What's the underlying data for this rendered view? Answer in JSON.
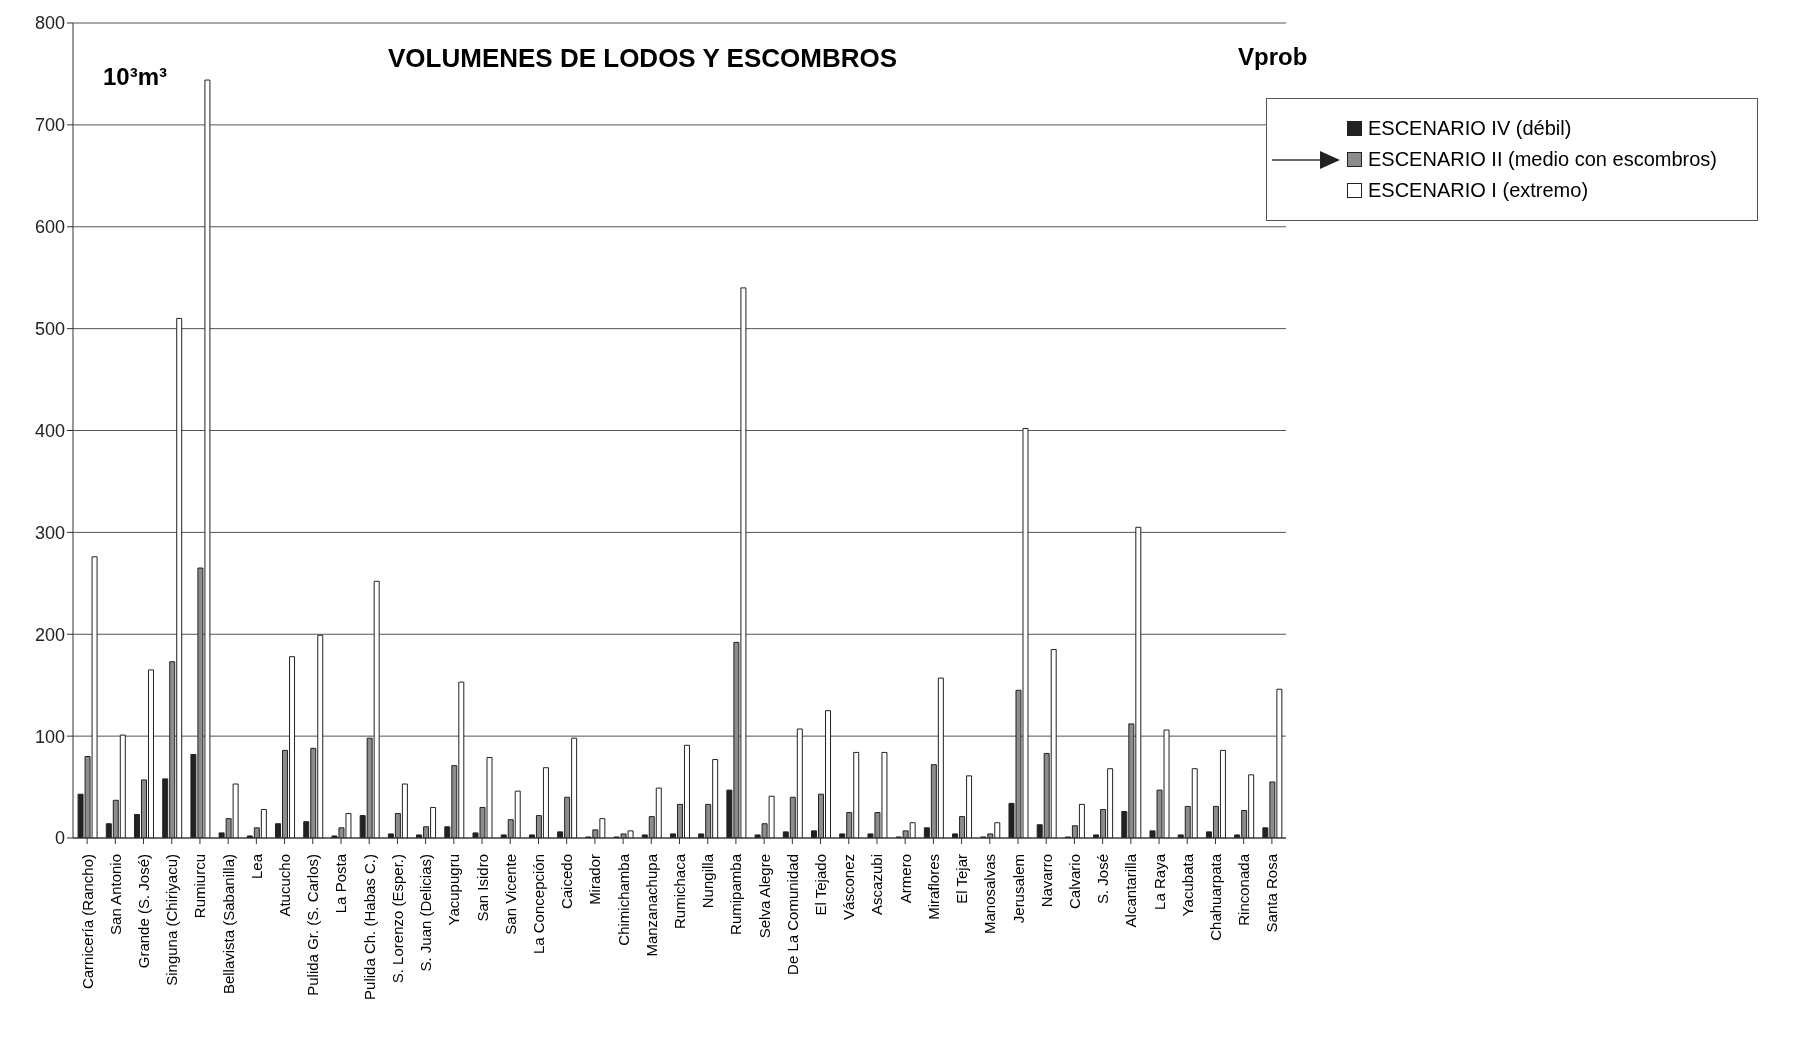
{
  "chart_data": {
    "type": "bar",
    "title": "VOLUMENES DE LODOS Y ESCOMBROS",
    "ylabel": "10³m³",
    "annotations": [
      "Vprob"
    ],
    "categories": [
      "Carnicería (Rancho)",
      "San Antonio",
      "Grande (S. José)",
      "Singuna (Chiriyacu)",
      "Rumiurcu",
      "Bellavista (Sabanilla)",
      "Lea",
      "Atucucho",
      "Pulida Gr. (S. Carlos)",
      "La Posta",
      "Pulida Ch. (Habas C.)",
      "S. Lorenzo (Esper.)",
      "S. Juan (Delicias)",
      "Yacupugru",
      "San Isidro",
      "San Vicente",
      "La Concepción",
      "Caicedo",
      "Mirador",
      "Chimichamba",
      "Manzanachupa",
      "Rumichaca",
      "Nungilla",
      "Rumipamba",
      "Selva Alegre",
      "De La Comunidad",
      "El Tejado",
      "Vásconez",
      "Ascazubi",
      "Armero",
      "Miraflores",
      "El Tejar",
      "Manosalvas",
      "Jerusalem",
      "Navarro",
      "Calvario",
      "S. José",
      "Alcantarilla",
      "La Raya",
      "Yacubata",
      "Chahuarpata",
      "Rinconada",
      "Santa Rosa"
    ],
    "series": [
      {
        "name": "ESCENARIO IV (débil)",
        "color": "#222222",
        "values": [
          43,
          14,
          23,
          58,
          82,
          5,
          2,
          14,
          16,
          2,
          22,
          4,
          3,
          11,
          5,
          3,
          3,
          6,
          1,
          1,
          3,
          4,
          4,
          47,
          3,
          6,
          7,
          4,
          4,
          1,
          10,
          4,
          1,
          34,
          13,
          1,
          3,
          26,
          7,
          3,
          6,
          3,
          10
        ]
      },
      {
        "name": "ESCENARIO II (medio con escombros)",
        "color": "#8c8c8c",
        "values": [
          80,
          37,
          57,
          173,
          265,
          19,
          10,
          86,
          88,
          10,
          98,
          24,
          11,
          71,
          30,
          18,
          22,
          40,
          8,
          4,
          21,
          33,
          33,
          192,
          14,
          40,
          43,
          25,
          25,
          7,
          72,
          21,
          4,
          145,
          83,
          12,
          28,
          112,
          47,
          31,
          31,
          27,
          55
        ]
      },
      {
        "name": "ESCENARIO I (extremo)",
        "color": "#ffffff",
        "values": [
          276,
          101,
          165,
          510,
          744,
          53,
          28,
          178,
          199,
          24,
          252,
          53,
          30,
          153,
          79,
          46,
          69,
          98,
          19,
          7,
          49,
          91,
          77,
          540,
          41,
          107,
          125,
          84,
          84,
          15,
          157,
          61,
          15,
          402,
          185,
          33,
          68,
          305,
          106,
          68,
          86,
          62,
          146
        ]
      }
    ],
    "ylim": [
      0,
      800
    ],
    "yticks": [
      0,
      100,
      200,
      300,
      400,
      500,
      600,
      700,
      800
    ],
    "grid": "y",
    "legend": "top right"
  }
}
